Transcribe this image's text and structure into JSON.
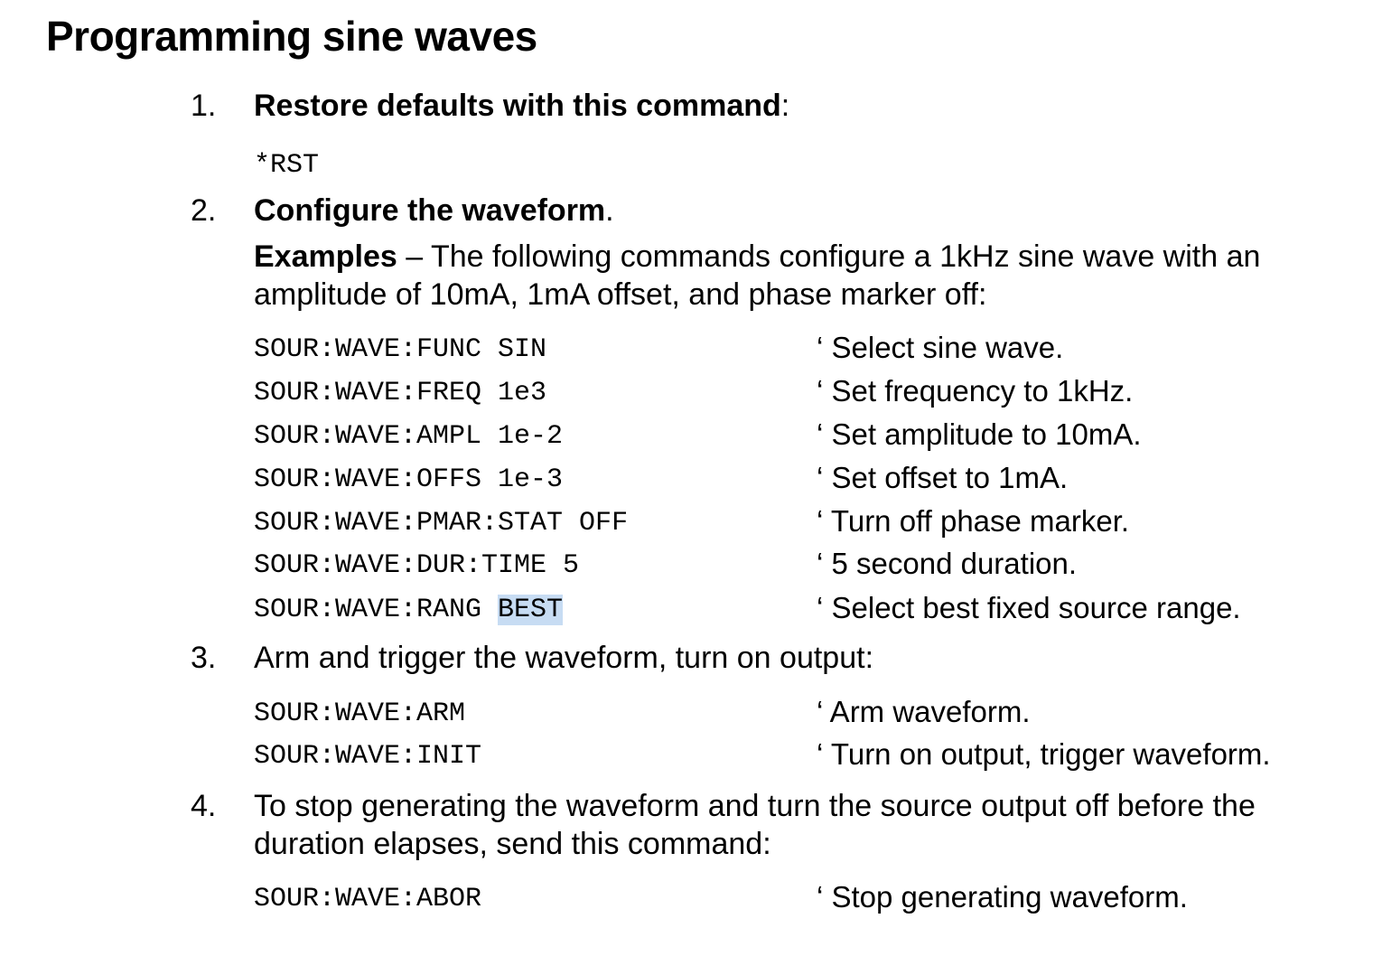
{
  "document": {
    "title": "Programming sine waves",
    "steps": [
      {
        "number": "1.",
        "bold": "Restore defaults with this command",
        "tail": ":",
        "code": [
          {
            "cmd": "*RST"
          }
        ]
      },
      {
        "number": "2.",
        "bold": "Configure the waveform",
        "tail": ".",
        "example_label": "Examples",
        "example_line1": " – The following commands configure a 1kHz sine wave with an",
        "example_line2": "amplitude of 10mA, 1mA offset, and phase marker off:",
        "code": [
          {
            "cmd": "SOUR:WAVE:FUNC SIN",
            "comment": "‘ Select sine wave."
          },
          {
            "cmd": "SOUR:WAVE:FREQ 1e3",
            "comment": "‘ Set frequency to 1kHz."
          },
          {
            "cmd": "SOUR:WAVE:AMPL 1e-2",
            "comment": "‘ Set amplitude to 10mA."
          },
          {
            "cmd": "SOUR:WAVE:OFFS 1e-3",
            "comment": "‘ Set offset to 1mA."
          },
          {
            "cmd": "SOUR:WAVE:PMAR:STAT OFF",
            "comment": "‘ Turn off phase marker."
          },
          {
            "cmd": "SOUR:WAVE:DUR:TIME 5",
            "comment": "‘ 5 second duration."
          },
          {
            "cmd_prefix": "SOUR:WAVE:RANG ",
            "cmd_selected": "BEST",
            "comment": "‘ Select best fixed source range."
          }
        ]
      },
      {
        "number": "3.",
        "text": "Arm and trigger the waveform, turn on output:",
        "code": [
          {
            "cmd": "SOUR:WAVE:ARM",
            "comment": "‘ Arm waveform."
          },
          {
            "cmd": "SOUR:WAVE:INIT",
            "comment": "‘ Turn on output, trigger waveform."
          }
        ]
      },
      {
        "number": "4.",
        "text_line1": "To stop generating the waveform and turn the source output off before the",
        "text_line2": "duration elapses, send this command:",
        "code": [
          {
            "cmd": "SOUR:WAVE:ABOR",
            "comment": "‘ Stop generating waveform."
          }
        ]
      }
    ]
  },
  "colors": {
    "text": "#000000",
    "selection_highlight": "#c7dcf3",
    "background": "#ffffff"
  }
}
